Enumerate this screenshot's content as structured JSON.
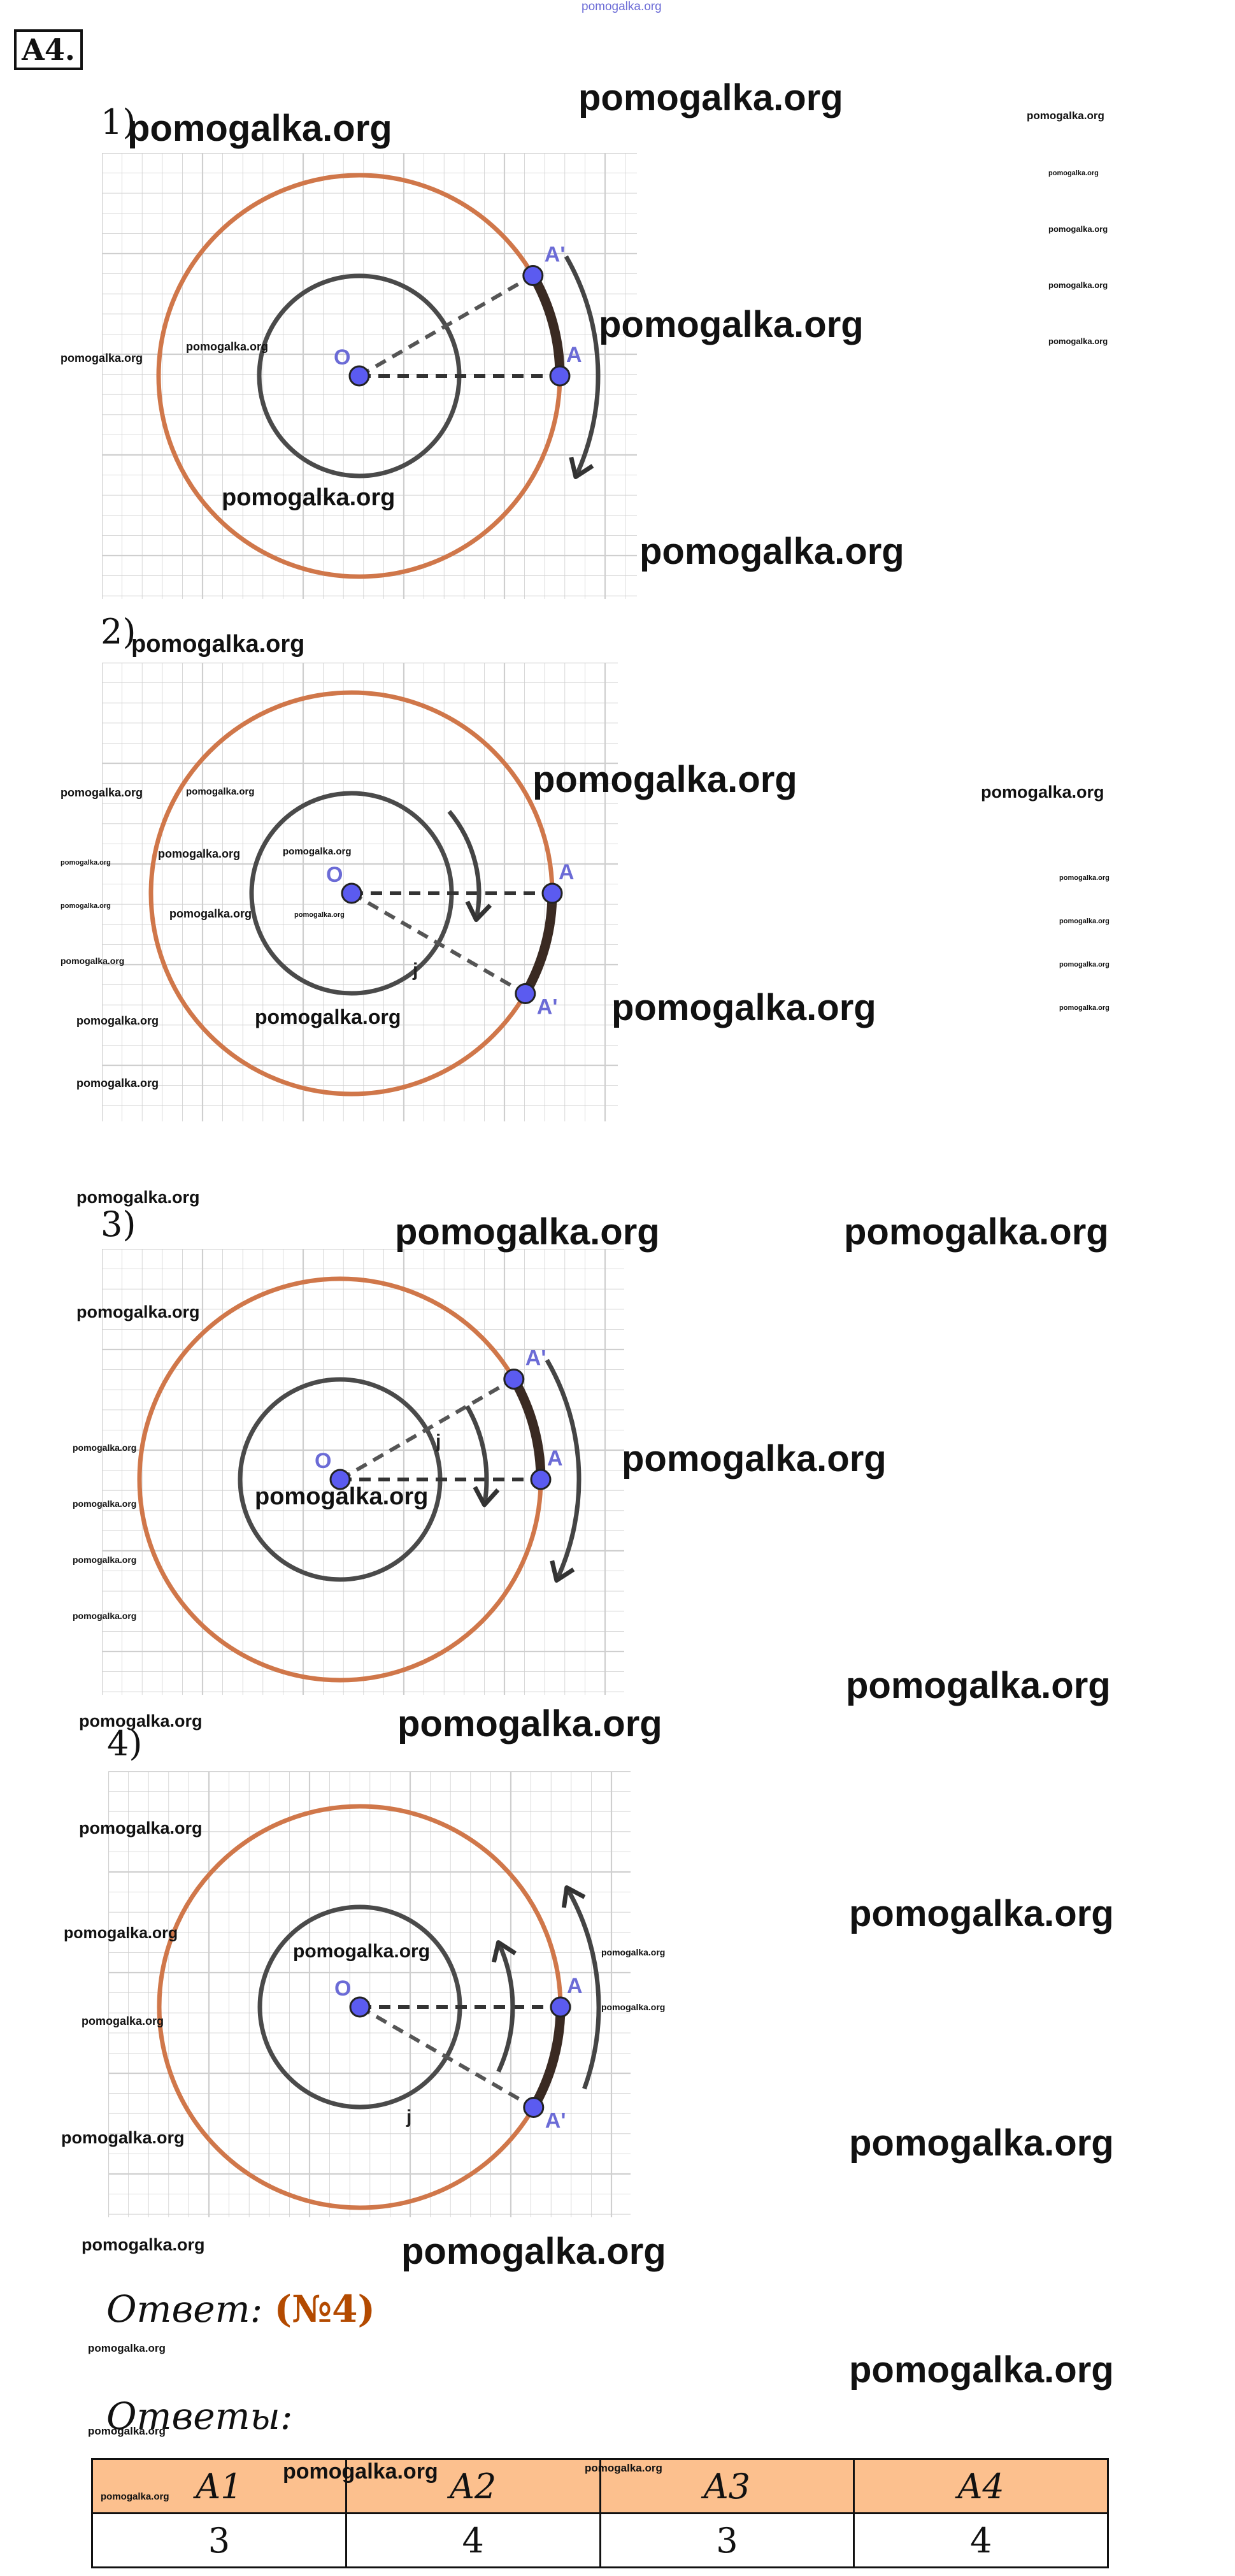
{
  "task_label": "A4",
  "figure_numbers": [
    "1)",
    "2)",
    "3)",
    "4)"
  ],
  "point_labels": {
    "center": "O",
    "point": "A",
    "image": "A'",
    "angle_mark": "j"
  },
  "colors": {
    "outer_circle": "#d0774a",
    "inner_circle": "#4a4a4a",
    "point_fill": "#5b5bf0",
    "point_label": "#6b6bd6",
    "arc_highlight": "#3a2a22",
    "grid": "#cfcfcf",
    "header_fill": "#fcc08e",
    "answer_value": "#b34a00"
  },
  "answer": {
    "label": "Ответ",
    "value": "(№4)"
  },
  "answers_table": {
    "label": "Ответы",
    "headers": [
      "A1",
      "A2",
      "A3",
      "A4"
    ],
    "values": [
      "3",
      "4",
      "3",
      "4"
    ]
  },
  "watermark": "pomogalka.org"
}
